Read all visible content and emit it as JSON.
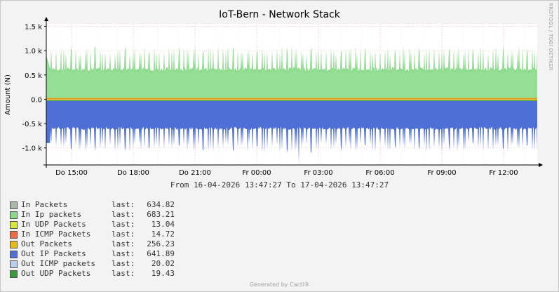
{
  "chart_data": {
    "type": "area",
    "title": "IoT-Bern - Network Stack",
    "ylabel": "Amount (N)",
    "xlabel": "",
    "ylim": [
      -1.35,
      1.55
    ],
    "yticks": [
      1.5,
      1.0,
      0.5,
      0.0,
      -0.5,
      -1.0
    ],
    "ytick_labels": [
      "1.5 k",
      "1.0 k",
      "0.5 k",
      "0.0",
      "-0.5 k",
      "-1.0 k"
    ],
    "xtick_labels": [
      "Do 15:00",
      "Do 18:00",
      "Do 21:00",
      "Fr 00:00",
      "Fr 03:00",
      "Fr 06:00",
      "Fr 09:00",
      "Fr 12:00"
    ],
    "time_range_text": "From 16-04-2026 13:47:27 To 17-04-2026 13:47:27",
    "grid": true,
    "series": [
      {
        "name": "In Packets",
        "last": "634.82",
        "color": "#a7b8a7"
      },
      {
        "name": "In Ip packets",
        "last": "683.21",
        "color": "#8ad98a"
      },
      {
        "name": "In UDP Packets",
        "last": "13.04",
        "color": "#d7e536"
      },
      {
        "name": "In ICMP Packets",
        "last": "14.72",
        "color": "#ef6b41"
      },
      {
        "name": "Out Packets",
        "last": "256.23",
        "color": "#e8b818"
      },
      {
        "name": "Out IP Packets",
        "last": "641.89",
        "color": "#4e6fd6"
      },
      {
        "name": "Out ICMP packets",
        "last": "20.02",
        "color": "#b8d0ec"
      },
      {
        "name": "Out UDP Packets",
        "last": "19.43",
        "color": "#3a9a3a"
      }
    ],
    "approx_profile": {
      "in_baseline_k": 0.62,
      "in_peak_k": 1.1,
      "out_baseline_k": -0.6,
      "out_trough_k": -1.1
    }
  },
  "legend_last_label": "last:",
  "side_label": "RRDTOOL / TOBI OETIKER",
  "footer": "Generated by Cacti®"
}
